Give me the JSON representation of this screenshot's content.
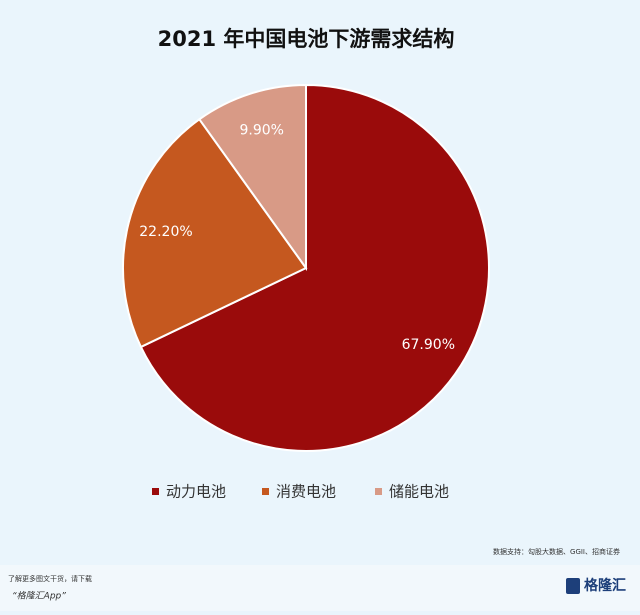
{
  "chart_data": {
    "type": "pie",
    "title": "2021 年中国电池下游需求结构",
    "categories": [
      "动力电池",
      "消费电池",
      "储能电池"
    ],
    "values": [
      67.9,
      22.2,
      9.9
    ],
    "value_labels": [
      "67.90%",
      "22.20%",
      "9.90%"
    ],
    "colors": [
      "#9a0b0b",
      "#c5581f",
      "#d89a86"
    ],
    "legend": "bottom"
  },
  "source": "数据支持：勾股大数据、GGII、招商证券",
  "footer": {
    "line1": "了解更多图文干货，请下载",
    "line2": "“格隆汇App”",
    "logo": "格隆汇"
  }
}
